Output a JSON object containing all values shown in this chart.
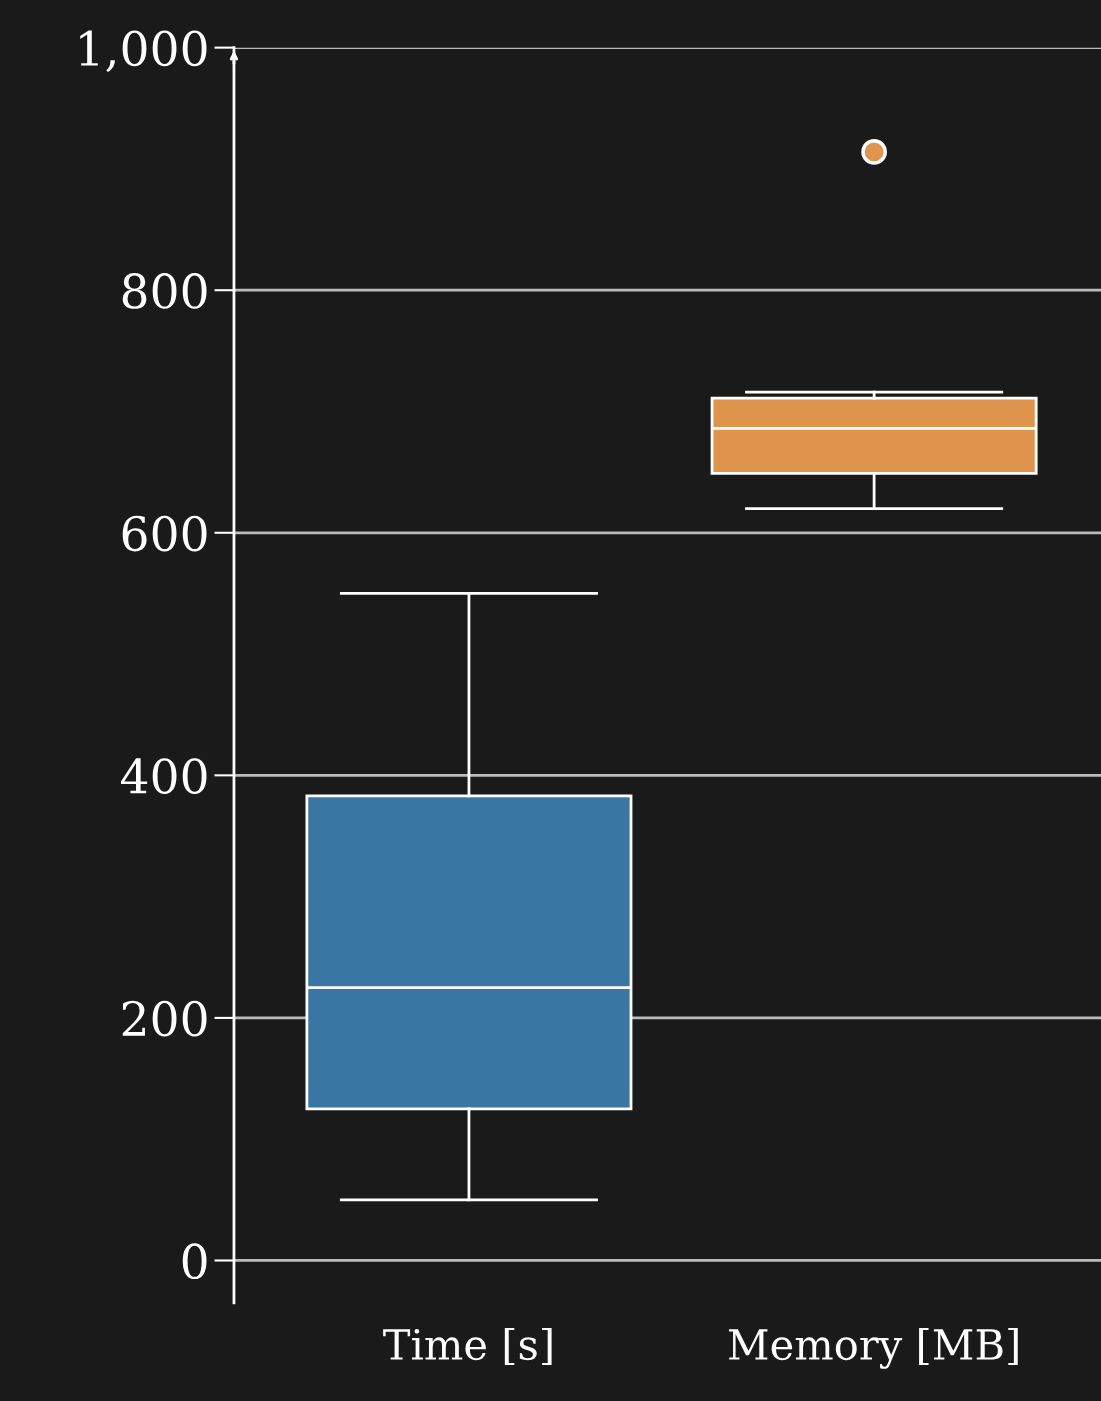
{
  "chart_data": {
    "type": "box",
    "categories": [
      "Time [s]",
      "Memory [MB]"
    ],
    "series": [
      {
        "color": "#3a76a4",
        "boxes": [
          {
            "low": 50,
            "q1": 125,
            "median": 225,
            "q3": 383,
            "high": 550
          },
          null
        ]
      },
      {
        "color": "#e0954e",
        "boxes": [
          null,
          {
            "low": 620,
            "q1": 649,
            "median": 686,
            "q3": 711,
            "high": 716,
            "outliers": [
              914
            ]
          }
        ]
      }
    ],
    "ylim": [
      -35,
      1000
    ],
    "yticks": [
      0,
      200,
      400,
      600,
      800,
      {
        "value": 1000,
        "label": "1,000"
      }
    ],
    "grid": "y"
  }
}
